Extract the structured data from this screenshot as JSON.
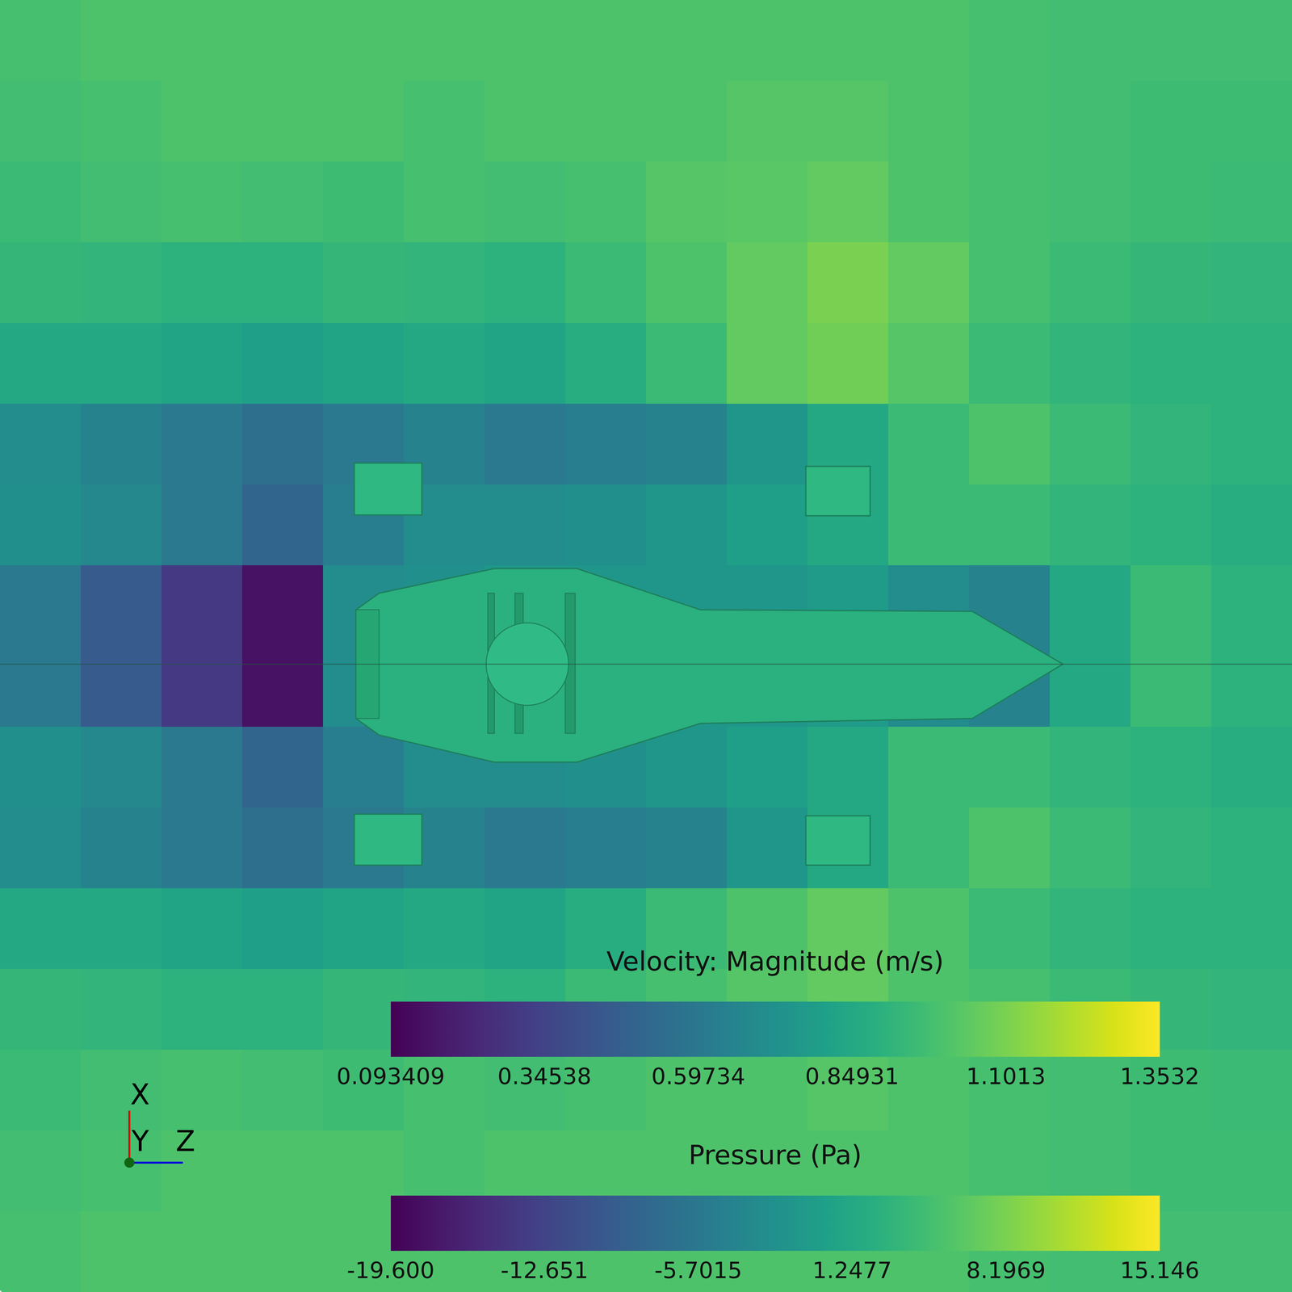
{
  "chart_data": {
    "type": "heatmap",
    "cells": [
      [
        0.98,
        1.0,
        1.0,
        1.0,
        1.0,
        1.0,
        1.0,
        1.0,
        1.0,
        1.0,
        1.0,
        1.0,
        0.98,
        0.97,
        0.97,
        0.97
      ],
      [
        0.97,
        0.98,
        1.0,
        1.0,
        1.0,
        0.98,
        1.0,
        1.0,
        1.0,
        1.02,
        1.02,
        1.0,
        0.98,
        0.97,
        0.96,
        0.96
      ],
      [
        0.95,
        0.97,
        0.98,
        0.97,
        0.96,
        0.98,
        0.97,
        0.98,
        1.02,
        1.03,
        1.05,
        1.0,
        0.98,
        0.97,
        0.96,
        0.95
      ],
      [
        0.93,
        0.92,
        0.9,
        0.9,
        0.93,
        0.92,
        0.9,
        0.95,
        1.0,
        1.05,
        1.1,
        1.05,
        0.98,
        0.95,
        0.93,
        0.92
      ],
      [
        0.85,
        0.85,
        0.82,
        0.8,
        0.82,
        0.85,
        0.82,
        0.88,
        0.95,
        1.05,
        1.08,
        1.02,
        0.95,
        0.92,
        0.9,
        0.9
      ],
      [
        0.7,
        0.65,
        0.6,
        0.55,
        0.6,
        0.65,
        0.6,
        0.62,
        0.65,
        0.75,
        0.85,
        0.95,
        1.0,
        0.95,
        0.92,
        0.9
      ],
      [
        0.72,
        0.68,
        0.6,
        0.5,
        0.62,
        0.7,
        0.7,
        0.72,
        0.75,
        0.8,
        0.85,
        0.95,
        0.95,
        0.92,
        0.9,
        0.88
      ],
      [
        0.6,
        0.45,
        0.3,
        0.15,
        0.7,
        0.72,
        0.75,
        0.75,
        0.75,
        0.75,
        0.78,
        0.7,
        0.65,
        0.85,
        0.95,
        0.9
      ],
      [
        0.6,
        0.45,
        0.3,
        0.15,
        0.7,
        0.72,
        0.75,
        0.75,
        0.75,
        0.75,
        0.78,
        0.7,
        0.65,
        0.85,
        0.95,
        0.9
      ],
      [
        0.72,
        0.68,
        0.6,
        0.5,
        0.62,
        0.7,
        0.7,
        0.72,
        0.75,
        0.8,
        0.85,
        0.95,
        0.95,
        0.92,
        0.9,
        0.88
      ],
      [
        0.7,
        0.65,
        0.6,
        0.55,
        0.6,
        0.65,
        0.6,
        0.62,
        0.65,
        0.75,
        0.85,
        0.95,
        1.0,
        0.95,
        0.92,
        0.9
      ],
      [
        0.85,
        0.85,
        0.82,
        0.8,
        0.82,
        0.85,
        0.82,
        0.88,
        0.95,
        1.0,
        1.05,
        1.0,
        0.95,
        0.92,
        0.9,
        0.9
      ],
      [
        0.93,
        0.92,
        0.9,
        0.9,
        0.93,
        0.92,
        0.9,
        0.95,
        0.98,
        1.02,
        1.05,
        1.0,
        0.98,
        0.95,
        0.93,
        0.92
      ],
      [
        0.95,
        0.97,
        0.98,
        0.97,
        0.96,
        0.98,
        0.97,
        0.98,
        1.0,
        1.0,
        1.02,
        1.0,
        0.98,
        0.97,
        0.96,
        0.95
      ],
      [
        0.97,
        0.98,
        1.0,
        1.0,
        1.0,
        0.98,
        1.0,
        1.0,
        1.0,
        1.0,
        1.0,
        1.0,
        0.98,
        0.97,
        0.96,
        0.96
      ],
      [
        0.98,
        1.0,
        1.0,
        1.0,
        1.0,
        1.0,
        1.0,
        1.0,
        1.0,
        1.0,
        1.0,
        1.0,
        0.98,
        0.97,
        0.97,
        0.97
      ]
    ],
    "xlim": [
      -0.5,
      15.5
    ],
    "ylim": [
      15.5,
      -0.5
    ],
    "tick_labels": false,
    "colorbar": {
      "title": "Velocity: Magnitude (m/s)",
      "range": [
        0.093409,
        1.3532
      ],
      "ticks": [
        0.093409,
        0.34538,
        0.59734,
        0.84931,
        1.1013,
        1.3532
      ]
    },
    "colorbar2": {
      "title": "Pressure (Pa)",
      "range": [
        -19.6,
        15.146
      ],
      "ticks": [
        {
          "value": -19.6,
          "label": "-19.600"
        },
        -12.651,
        -5.7015,
        1.2477,
        8.1969,
        15.146
      ]
    },
    "axes_triad": [
      "X",
      "Y",
      "Z"
    ]
  }
}
